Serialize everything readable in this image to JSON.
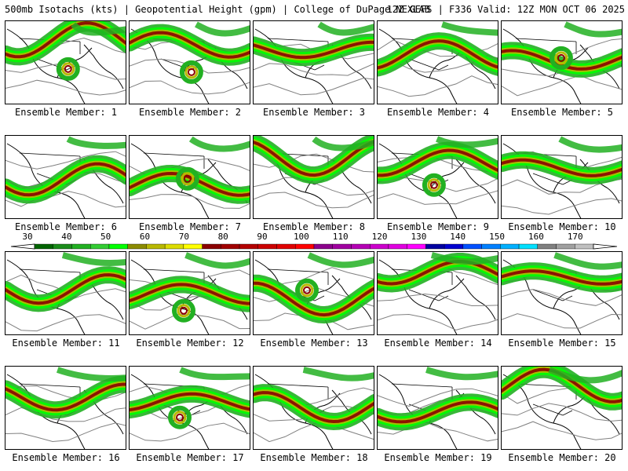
{
  "header": {
    "left": "500mb Isotachs (kts) | Geopotential Height (gpm) | College of DuPage NEXLAB",
    "right": "12Z GEFS | F336 Valid: 12Z MON OCT 06 2025"
  },
  "panels": [
    {
      "label": "Ensemble Member: 1"
    },
    {
      "label": "Ensemble Member: 2"
    },
    {
      "label": "Ensemble Member: 3"
    },
    {
      "label": "Ensemble Member: 4"
    },
    {
      "label": "Ensemble Member: 5"
    },
    {
      "label": "Ensemble Member: 6"
    },
    {
      "label": "Ensemble Member: 7"
    },
    {
      "label": "Ensemble Member: 8"
    },
    {
      "label": "Ensemble Member: 9"
    },
    {
      "label": "Ensemble Member: 10"
    },
    {
      "label": "Ensemble Member: 11"
    },
    {
      "label": "Ensemble Member: 12"
    },
    {
      "label": "Ensemble Member: 13"
    },
    {
      "label": "Ensemble Member: 14"
    },
    {
      "label": "Ensemble Member: 15"
    },
    {
      "label": "Ensemble Member: 16"
    },
    {
      "label": "Ensemble Member: 17"
    },
    {
      "label": "Ensemble Member: 18"
    },
    {
      "label": "Ensemble Member: 19"
    },
    {
      "label": "Ensemble Member: 20"
    }
  ],
  "colorbar": {
    "ticks": [
      "30",
      "40",
      "50",
      "60",
      "70",
      "80",
      "90",
      "100",
      "110",
      "120",
      "130",
      "140",
      "150",
      "160",
      "170"
    ],
    "colors": [
      "#006400",
      "#1a8c1a",
      "#22b022",
      "#33cc33",
      "#00ff00",
      "#8b8b00",
      "#b8b800",
      "#dcdc00",
      "#ffff00",
      "#8b0000",
      "#a00000",
      "#b40000",
      "#cc0000",
      "#e00000",
      "#ff0000",
      "#8b008b",
      "#a000a0",
      "#b400b4",
      "#cc00cc",
      "#e000e0",
      "#ff00ff",
      "#0000a0",
      "#0000d0",
      "#0050ff",
      "#0080ff",
      "#00b0ff",
      "#00e0ff",
      "#808080",
      "#a0a0a0",
      "#c0c0c0"
    ]
  }
}
